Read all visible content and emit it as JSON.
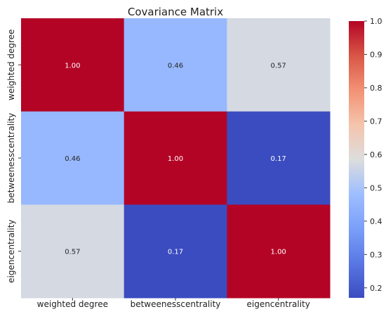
{
  "chart_data": {
    "type": "heatmap",
    "title": "Covariance Matrix",
    "rows": [
      "weighted degree",
      "betweenesscentrality",
      "eigencentrality"
    ],
    "columns": [
      "weighted degree",
      "betweenesscentrality",
      "eigencentrality"
    ],
    "values": [
      [
        1.0,
        0.46,
        0.57
      ],
      [
        0.46,
        1.0,
        0.17
      ],
      [
        0.57,
        0.17,
        1.0
      ]
    ],
    "value_labels": [
      [
        "1.00",
        "0.46",
        "0.57"
      ],
      [
        "0.46",
        "1.00",
        "0.17"
      ],
      [
        "0.57",
        "0.17",
        "1.00"
      ]
    ],
    "colormap": "coolwarm",
    "color_range": [
      0.17,
      1.0
    ],
    "colorbar_ticks": [
      "1.0",
      "0.9",
      "0.8",
      "0.7",
      "0.6",
      "0.5",
      "0.4",
      "0.3",
      "0.2"
    ],
    "colorbar_tick_values": [
      1.0,
      0.9,
      0.8,
      0.7,
      0.6,
      0.5,
      0.4,
      0.3,
      0.2
    ],
    "colors": {
      "low": "#3b4cc0",
      "mid": "#dddddd",
      "high": "#b40426"
    }
  }
}
